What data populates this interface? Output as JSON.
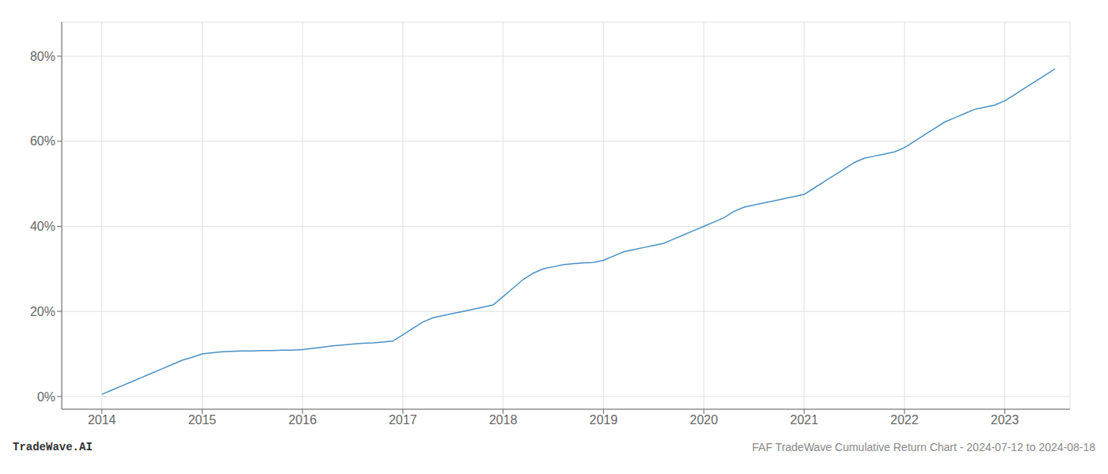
{
  "chart_data": {
    "type": "line",
    "x": [
      2014.0,
      2014.1,
      2014.2,
      2014.3,
      2014.4,
      2014.5,
      2014.6,
      2014.7,
      2014.8,
      2014.9,
      2015.0,
      2015.1,
      2015.2,
      2015.3,
      2015.4,
      2015.5,
      2015.6,
      2015.7,
      2015.8,
      2015.9,
      2016.0,
      2016.1,
      2016.2,
      2016.3,
      2016.4,
      2016.5,
      2016.6,
      2016.7,
      2016.8,
      2016.9,
      2017.0,
      2017.1,
      2017.2,
      2017.3,
      2017.4,
      2017.5,
      2017.6,
      2017.7,
      2017.8,
      2017.9,
      2018.0,
      2018.1,
      2018.2,
      2018.3,
      2018.4,
      2018.5,
      2018.6,
      2018.7,
      2018.8,
      2018.9,
      2019.0,
      2019.1,
      2019.2,
      2019.3,
      2019.4,
      2019.5,
      2019.6,
      2019.7,
      2019.8,
      2019.9,
      2020.0,
      2020.1,
      2020.2,
      2020.3,
      2020.4,
      2020.5,
      2020.6,
      2020.7,
      2020.8,
      2020.9,
      2021.0,
      2021.1,
      2021.2,
      2021.3,
      2021.4,
      2021.5,
      2021.6,
      2021.7,
      2021.8,
      2021.9,
      2022.0,
      2022.1,
      2022.2,
      2022.3,
      2022.4,
      2022.5,
      2022.6,
      2022.7,
      2022.8,
      2022.9,
      2023.0,
      2023.1,
      2023.2,
      2023.3,
      2023.4,
      2023.5
    ],
    "values": [
      0.5,
      1.5,
      2.5,
      3.5,
      4.5,
      5.5,
      6.5,
      7.5,
      8.5,
      9.2,
      10.0,
      10.3,
      10.5,
      10.6,
      10.7,
      10.7,
      10.8,
      10.8,
      10.9,
      10.9,
      11.0,
      11.3,
      11.6,
      11.9,
      12.1,
      12.3,
      12.5,
      12.6,
      12.8,
      13.0,
      14.5,
      16.0,
      17.5,
      18.5,
      19.0,
      19.5,
      20.0,
      20.5,
      21.0,
      21.5,
      23.5,
      25.5,
      27.5,
      29.0,
      30.0,
      30.5,
      31.0,
      31.2,
      31.4,
      31.5,
      32.0,
      33.0,
      34.0,
      34.5,
      35.0,
      35.5,
      36.0,
      37.0,
      38.0,
      39.0,
      40.0,
      41.0,
      42.0,
      43.5,
      44.5,
      45.0,
      45.5,
      46.0,
      46.5,
      47.0,
      47.5,
      49.0,
      50.5,
      52.0,
      53.5,
      55.0,
      56.0,
      56.5,
      57.0,
      57.5,
      58.5,
      60.0,
      61.5,
      63.0,
      64.5,
      65.5,
      66.5,
      67.5,
      68.0,
      68.5,
      69.5,
      71.0,
      72.5,
      74.0,
      75.5,
      77.0
    ],
    "color": "#4a90c4",
    "xlim": [
      2013.6,
      2023.65
    ],
    "xticks": [
      2014,
      2015,
      2016,
      2017,
      2018,
      2019,
      2020,
      2021,
      2022,
      2023
    ],
    "ylim": [
      -3,
      88
    ],
    "yticks": [
      {
        "value": 0,
        "label": "0%"
      },
      {
        "value": 20,
        "label": "20%"
      },
      {
        "value": 40,
        "label": "40%"
      },
      {
        "value": 60,
        "label": "60%"
      },
      {
        "value": 80,
        "label": "80%"
      }
    ],
    "grid": true,
    "annotations": [
      "TradeWave.AI",
      "FAF TradeWave Cumulative Return Chart - 2024-07-12 to 2024-08-18"
    ]
  }
}
